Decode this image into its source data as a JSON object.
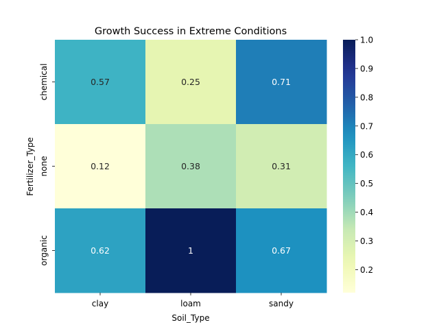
{
  "chart_data": {
    "type": "heatmap",
    "title": "Growth Success in Extreme Conditions",
    "xlabel": "Soil_Type",
    "ylabel": "Fertilizer_Type",
    "x_categories": [
      "clay",
      "loam",
      "sandy"
    ],
    "y_categories": [
      "chemical",
      "none",
      "organic"
    ],
    "values": [
      [
        0.57,
        0.25,
        0.71
      ],
      [
        0.12,
        0.38,
        0.31
      ],
      [
        0.62,
        1.0,
        0.67
      ]
    ],
    "cell_labels": [
      [
        "0.57",
        "0.25",
        "0.71"
      ],
      [
        "0.12",
        "0.38",
        "0.31"
      ],
      [
        "0.62",
        "1",
        "0.67"
      ]
    ],
    "colorscale": "YlGnBu",
    "vmin": 0.12,
    "vmax": 1.0,
    "colorbar_ticks": [
      0.2,
      0.3,
      0.4,
      0.5,
      0.6,
      0.7,
      0.8,
      0.9,
      1.0
    ],
    "colorbar_tick_labels": [
      "0.2",
      "0.3",
      "0.4",
      "0.5",
      "0.6",
      "0.7",
      "0.8",
      "0.9",
      "1.0"
    ]
  }
}
